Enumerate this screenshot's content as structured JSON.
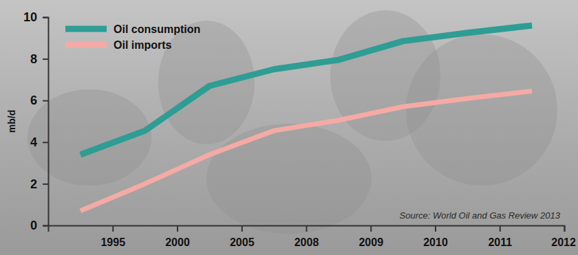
{
  "chart_data": {
    "type": "line",
    "y_label": "mb/d",
    "categories": [
      "1995",
      "2000",
      "2005",
      "2008",
      "2009",
      "2010",
      "2011",
      "2012"
    ],
    "series": [
      {
        "name": "Oil consumption",
        "color": "#2e9d94",
        "values": [
          3.4,
          4.55,
          6.7,
          7.5,
          7.95,
          8.85,
          9.25,
          9.6
        ]
      },
      {
        "name": "Oil imports",
        "color": "#f5aaa5",
        "values": [
          0.7,
          2.0,
          3.4,
          4.55,
          5.05,
          5.7,
          6.1,
          6.45
        ]
      }
    ],
    "ylim": [
      0,
      10
    ],
    "yticks": [
      0,
      2,
      4,
      6,
      8,
      10
    ],
    "grid": false,
    "legend": "top-left",
    "annotations": [
      "Source: World Oil and Gas Review 2013"
    ]
  }
}
